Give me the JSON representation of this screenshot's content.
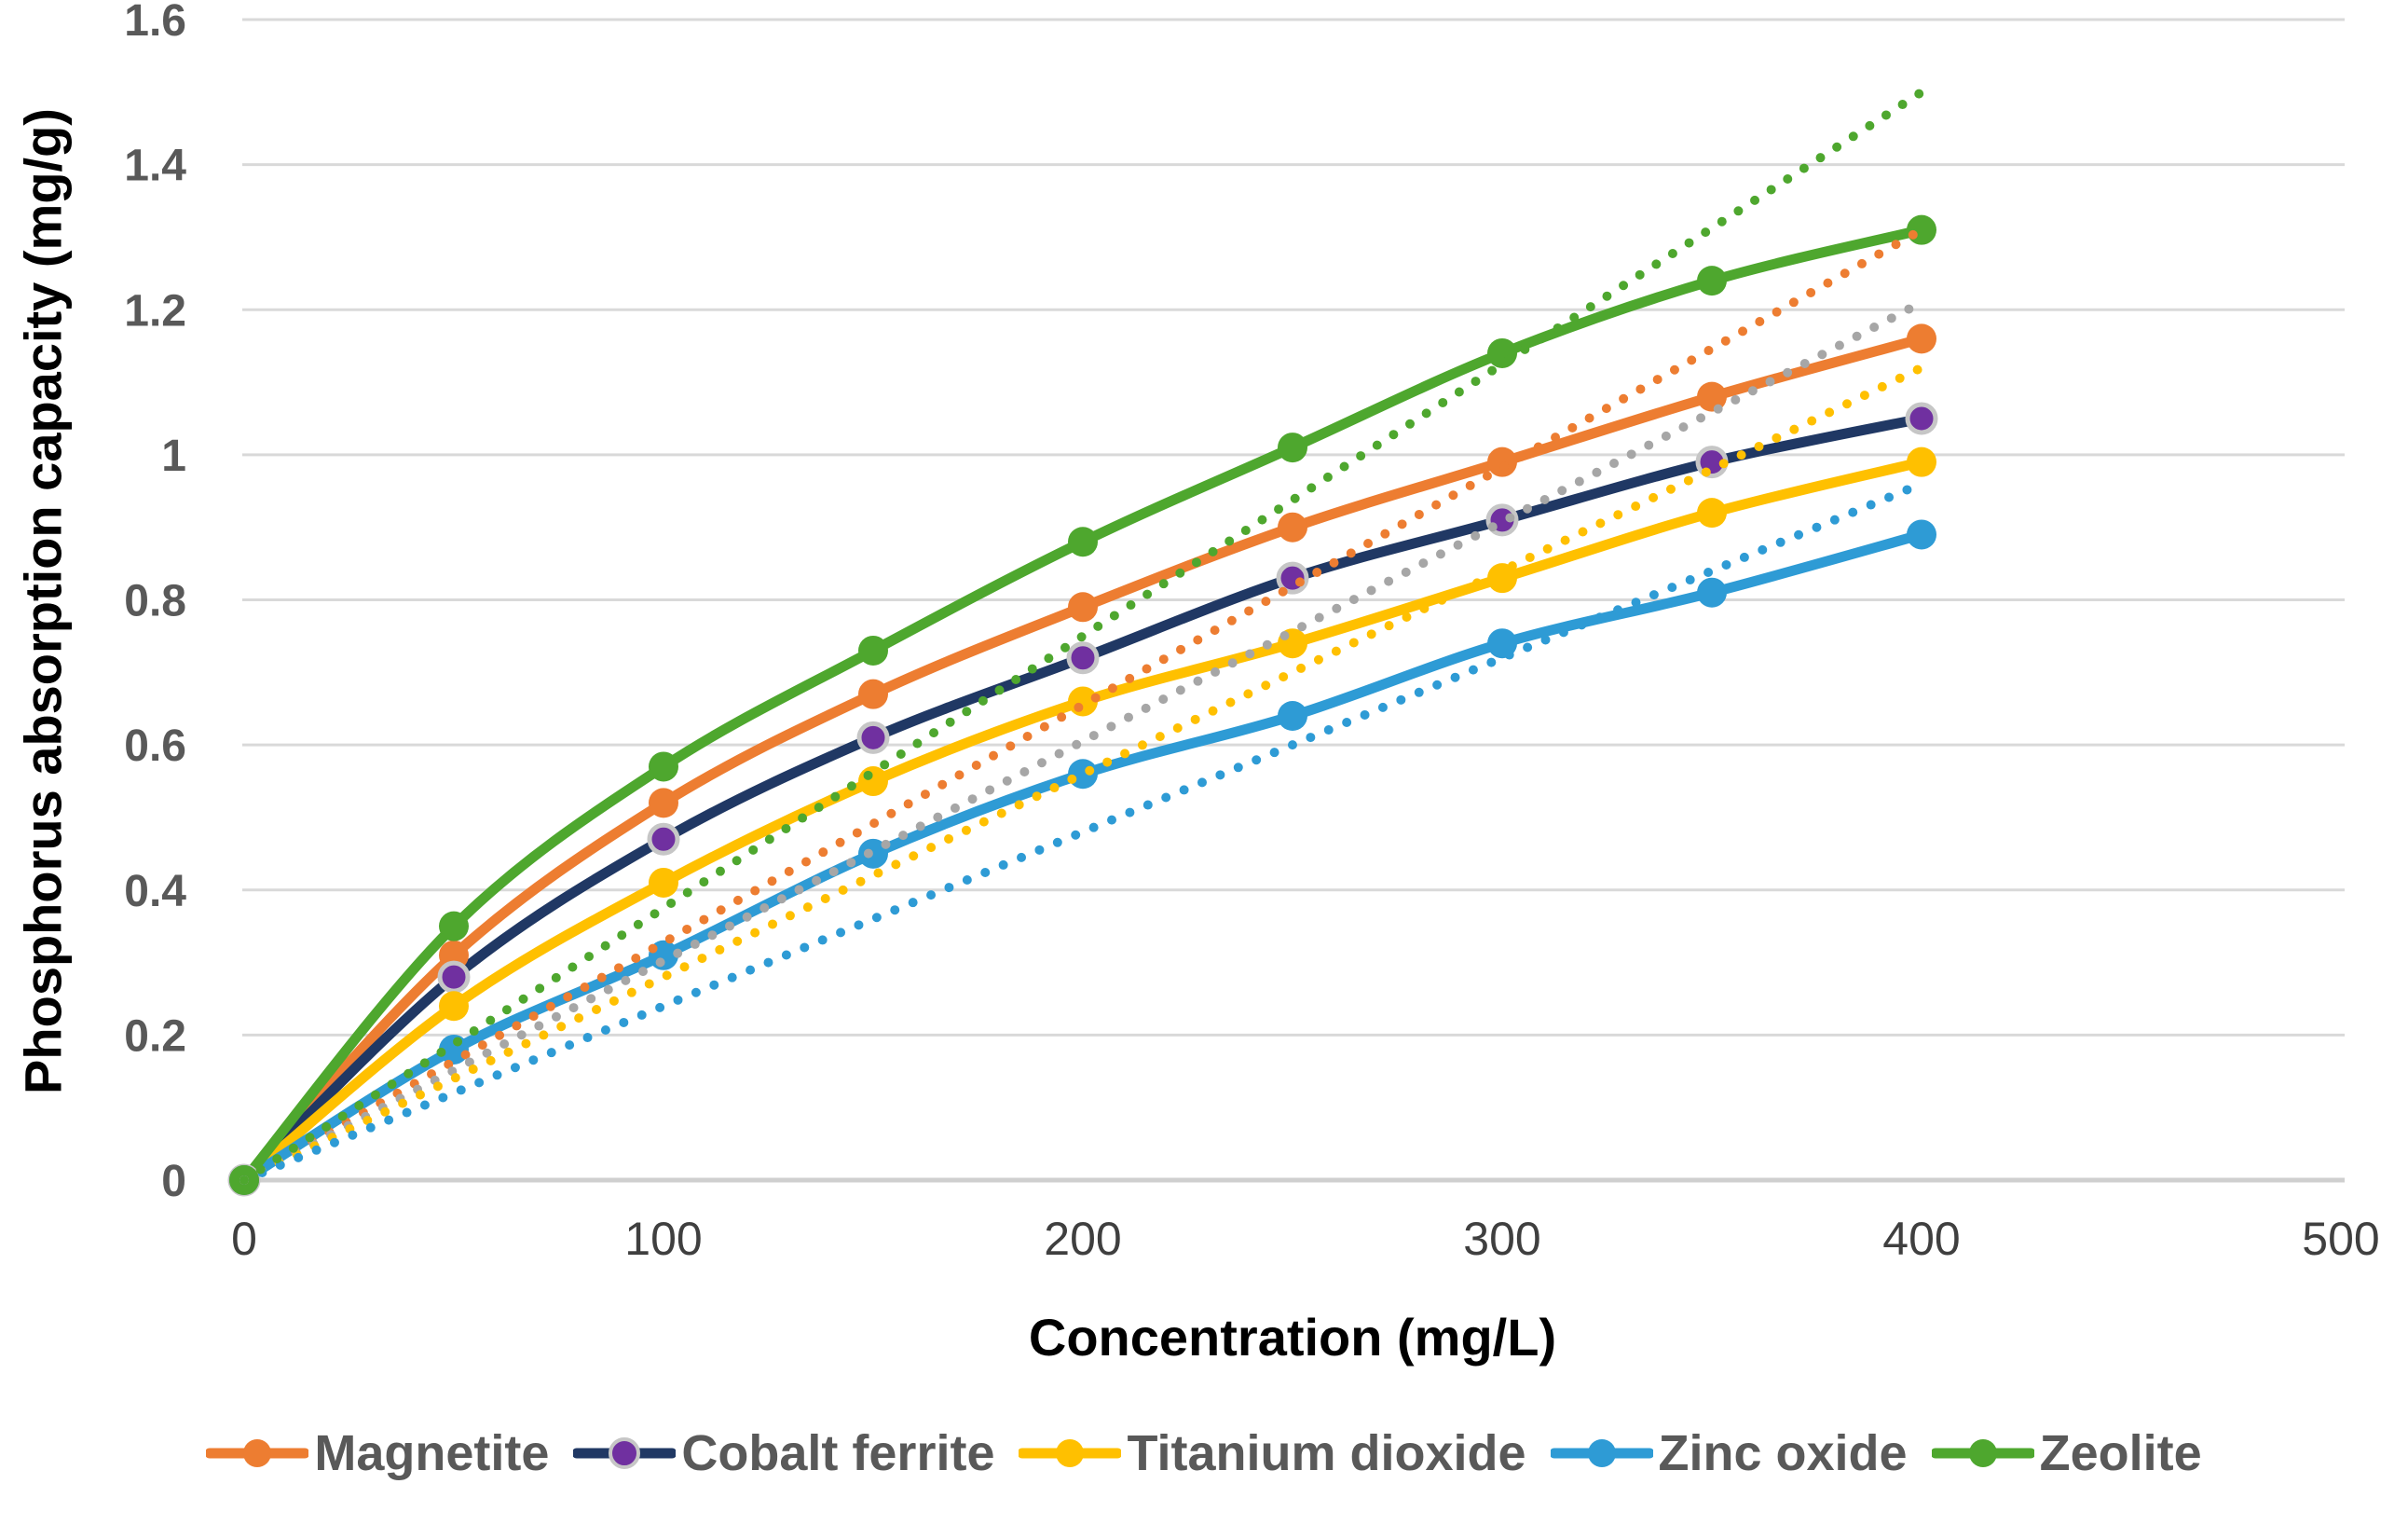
{
  "chart_data": {
    "type": "line",
    "title": "",
    "xlabel": "Concentration (mg/L)",
    "ylabel": "Phosphorus absorption capacity (mg/g)",
    "x": [
      0,
      50,
      100,
      150,
      200,
      250,
      300,
      350,
      400
    ],
    "series": [
      {
        "name": "Magnetite",
        "color": "#ED7D31",
        "marker_color": "#ED7D31",
        "marker_ring": null,
        "values": [
          0,
          0.31,
          0.52,
          0.67,
          0.79,
          0.9,
          0.99,
          1.08,
          1.16
        ]
      },
      {
        "name": "Cobalt ferrite",
        "color": "#203864",
        "marker_color": "#7030A0",
        "marker_ring": "#C6C6C6",
        "values": [
          0,
          0.28,
          0.47,
          0.61,
          0.72,
          0.83,
          0.91,
          0.99,
          1.05
        ]
      },
      {
        "name": "Titanium dioxide",
        "color": "#FFC000",
        "marker_color": "#FFC000",
        "marker_ring": null,
        "values": [
          0,
          0.24,
          0.41,
          0.55,
          0.66,
          0.74,
          0.83,
          0.92,
          0.99
        ]
      },
      {
        "name": "Zinc oxide",
        "color": "#2E9BD5",
        "marker_color": "#2E9BD5",
        "marker_ring": null,
        "values": [
          0,
          0.18,
          0.31,
          0.45,
          0.56,
          0.64,
          0.74,
          0.81,
          0.89
        ]
      },
      {
        "name": "Zeolite",
        "color": "#4EA72E",
        "marker_color": "#4EA72E",
        "marker_ring": null,
        "values": [
          0,
          0.35,
          0.57,
          0.73,
          0.88,
          1.01,
          1.14,
          1.24,
          1.31
        ]
      }
    ],
    "trendlines": [
      {
        "series": "Magnetite",
        "style": "dotted",
        "color": "#ED7D31",
        "x_range": [
          0,
          400
        ],
        "y_range": [
          0,
          1.31
        ]
      },
      {
        "series": "Cobalt ferrite",
        "style": "dotted",
        "color": "#A6A6A6",
        "x_range": [
          0,
          400
        ],
        "y_range": [
          0,
          1.21
        ]
      },
      {
        "series": "Titanium dioxide",
        "style": "dotted",
        "color": "#FFC000",
        "x_range": [
          0,
          400
        ],
        "y_range": [
          0,
          1.12
        ]
      },
      {
        "series": "Zinc oxide",
        "style": "dotted",
        "color": "#2E9BD5",
        "x_range": [
          0,
          400
        ],
        "y_range": [
          0,
          0.96
        ]
      },
      {
        "series": "Zeolite",
        "style": "dotted",
        "color": "#4EA72E",
        "x_range": [
          0,
          400
        ],
        "y_range": [
          0,
          1.5
        ]
      }
    ],
    "x_axis": {
      "min": 0,
      "max": 500,
      "ticks": [
        "0",
        "100",
        "200",
        "300",
        "400",
        "500"
      ]
    },
    "y_axis": {
      "min": 0,
      "max": 1.6,
      "ticks": [
        "0",
        "0.2",
        "0.4",
        "0.6",
        "0.8",
        "1",
        "1.2",
        "1.4",
        "1.6"
      ]
    },
    "grid": "horizontal",
    "legend_position": "bottom"
  },
  "styles": {
    "background": "#FFFFFF",
    "grid_color": "#D9D9D9",
    "axis_line_color": "#CFCFCF",
    "y_tick_color": "#595959",
    "x_tick_color": "#3F3F3F",
    "title_color": "#000000",
    "legend_text_color": "#595959"
  }
}
